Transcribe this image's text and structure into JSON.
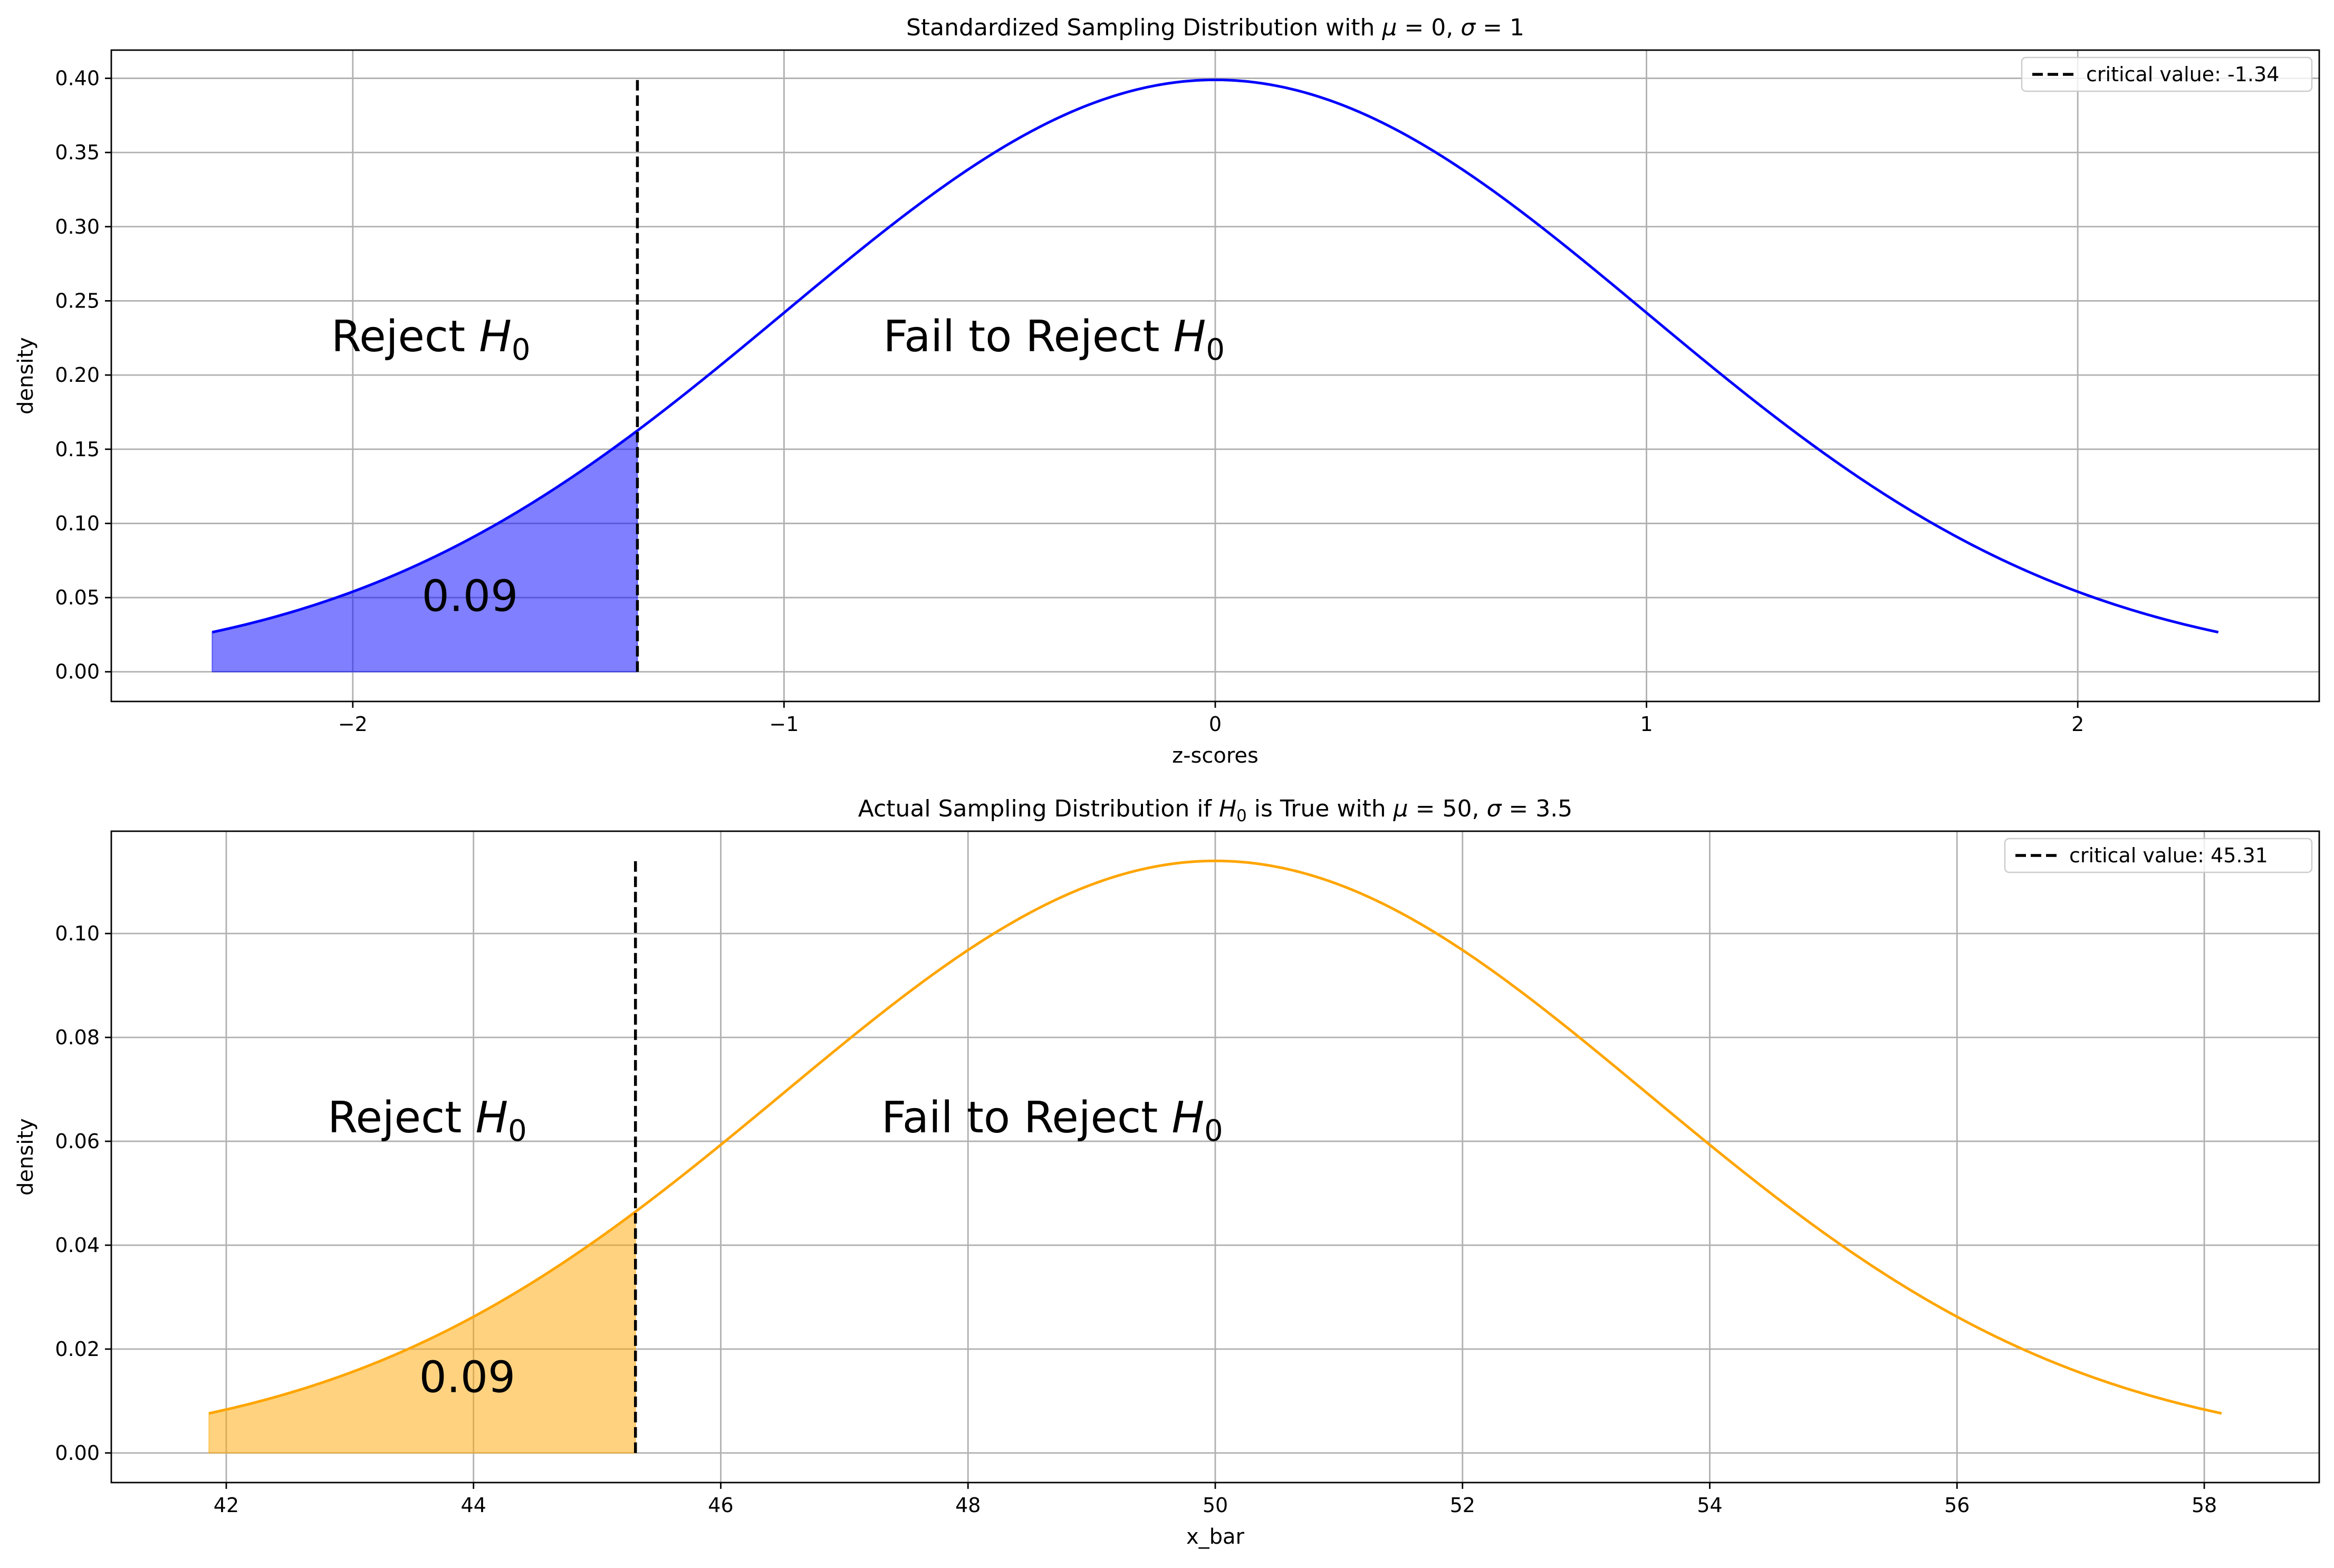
{
  "chart_data": [
    {
      "type": "line",
      "title_parts": [
        "Standardized Sampling Distribution with ",
        "μ",
        " = 0, ",
        "σ",
        " = 1"
      ],
      "xlabel": "z-scores",
      "ylabel": "density",
      "xlim": [
        -2.56,
        2.56
      ],
      "ylim": [
        -0.02,
        0.419
      ],
      "xticks": [
        -2,
        -1,
        0,
        1,
        2
      ],
      "xtick_labels": [
        "−2",
        "−1",
        "0",
        "1",
        "2"
      ],
      "yticks": [
        0.0,
        0.05,
        0.1,
        0.15,
        0.2,
        0.25,
        0.3,
        0.35,
        0.4
      ],
      "ytick_labels": [
        "0.00",
        "0.05",
        "0.10",
        "0.15",
        "0.20",
        "0.25",
        "0.30",
        "0.35",
        "0.40"
      ],
      "grid": true,
      "curve": {
        "distribution": "normal",
        "mean": 0,
        "sd": 1,
        "x_range": [
          -2.326,
          2.326
        ],
        "color": "#0000ff"
      },
      "critical_value": -1.34,
      "shaded_region": {
        "from": -2.326,
        "to": -1.34,
        "color": "#0000ff",
        "opacity": 0.5
      },
      "legend": {
        "label": "critical value: -1.34",
        "style": "dashed",
        "color": "#000000",
        "placement": "top-right"
      },
      "annotations": {
        "reject_label": {
          "text": "Reject ",
          "symbol": "H",
          "subscript": "0",
          "x": -2.05,
          "y": 0.216
        },
        "fail_label": {
          "text": "Fail to Reject ",
          "symbol": "H",
          "subscript": "0",
          "x": -0.77,
          "y": 0.216
        },
        "probability": {
          "text": "0.09",
          "x": -1.84,
          "y": 0.041
        }
      }
    },
    {
      "type": "line",
      "title_parts": [
        "Actual Sampling Distribution if ",
        "H",
        "0",
        " is True with ",
        "μ",
        " = 50, ",
        "σ",
        " = 3.5"
      ],
      "xlabel": "x_bar",
      "ylabel": "density",
      "xlim": [
        41.07,
        58.93
      ],
      "ylim": [
        -0.0057,
        0.1197
      ],
      "xticks": [
        42,
        44,
        46,
        48,
        50,
        52,
        54,
        56,
        58
      ],
      "xtick_labels": [
        "42",
        "44",
        "46",
        "48",
        "50",
        "52",
        "54",
        "56",
        "58"
      ],
      "yticks": [
        0.0,
        0.02,
        0.04,
        0.06,
        0.08,
        0.1
      ],
      "ytick_labels": [
        "0.00",
        "0.02",
        "0.04",
        "0.06",
        "0.08",
        "0.10"
      ],
      "grid": true,
      "curve": {
        "distribution": "normal",
        "mean": 50,
        "sd": 3.5,
        "x_range": [
          41.86,
          58.14
        ],
        "color": "#ffa500"
      },
      "critical_value": 45.31,
      "shaded_region": {
        "from": 41.86,
        "to": 45.31,
        "color": "#ffa500",
        "opacity": 0.5
      },
      "legend": {
        "label": "critical value: 45.31",
        "style": "dashed",
        "color": "#000000",
        "placement": "top-right"
      },
      "annotations": {
        "reject_label": {
          "text": "Reject ",
          "symbol": "H",
          "subscript": "0",
          "x": 42.82,
          "y": 0.0617
        },
        "fail_label": {
          "text": "Fail to Reject ",
          "symbol": "H",
          "subscript": "0",
          "x": 47.3,
          "y": 0.0617
        },
        "probability": {
          "text": "0.09",
          "x": 43.56,
          "y": 0.0117
        }
      }
    }
  ]
}
